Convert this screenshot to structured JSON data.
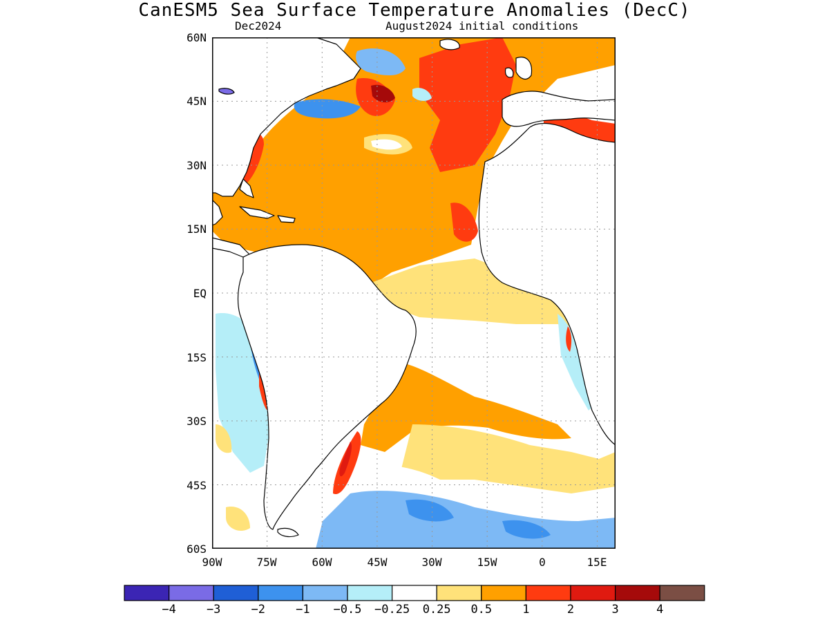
{
  "title": "CanESM5 Sea Surface Temperature Anomalies (DecC)",
  "subtitle_left": "Dec2024",
  "subtitle_right": "August2024 initial conditions",
  "map": {
    "lon_range": [
      -90,
      20
    ],
    "lat_range": [
      -60,
      60
    ],
    "y_ticks": [
      "60N",
      "45N",
      "30N",
      "15N",
      "EQ",
      "15S",
      "30S",
      "45S",
      "60S"
    ],
    "x_ticks": [
      "90W",
      "75W",
      "60W",
      "45W",
      "30W",
      "15W",
      "0",
      "15E"
    ],
    "land_color": "#ffffff",
    "grid": "dotted"
  },
  "colorbar": {
    "colors": [
      "#3b25b4",
      "#7a6be6",
      "#1f5fd6",
      "#3d92ee",
      "#7db9f5",
      "#b5eef8",
      "#ffffff",
      "#ffe27a",
      "#ffa000",
      "#ff3b10",
      "#e01a10",
      "#a50a0a",
      "#7b4e44"
    ],
    "labels": [
      "−4",
      "−3",
      "−2",
      "−1",
      "−0.5",
      "−0.25",
      "0.25",
      "0.5",
      "1",
      "2",
      "3",
      "4"
    ]
  }
}
